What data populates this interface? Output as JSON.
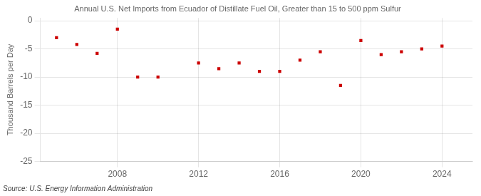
{
  "chart_data": {
    "type": "scatter",
    "title": "Annual U.S. Net Imports from Ecuador of Distillate Fuel Oil, Greater than 15 to 500 ppm Sulfur",
    "ylabel": "Thousand Barrels per Day",
    "source": "Source: U.S. Energy Information Administration",
    "x": [
      2005,
      2006,
      2007,
      2008,
      2009,
      2010,
      2011,
      2012,
      2013,
      2014,
      2015,
      2016,
      2017,
      2018,
      2019,
      2020,
      2021,
      2022,
      2023,
      2024
    ],
    "values": [
      -3.0,
      -4.2,
      -5.8,
      -1.5,
      -10.0,
      -10.0,
      null,
      -7.5,
      -8.5,
      -7.5,
      -9.0,
      -9.0,
      -7.0,
      -5.5,
      -11.5,
      -3.5,
      -6.0,
      -5.5,
      -5.0,
      -4.5
    ],
    "color": "#cc0000",
    "marker": "square",
    "xlim": [
      2004.2,
      2025.5
    ],
    "xticks": [
      2008,
      2012,
      2016,
      2020,
      2024
    ],
    "ylim": [
      -25,
      0.5
    ],
    "yticks": [
      0,
      -5,
      -10,
      -15,
      -20,
      -25
    ],
    "grid": true
  }
}
